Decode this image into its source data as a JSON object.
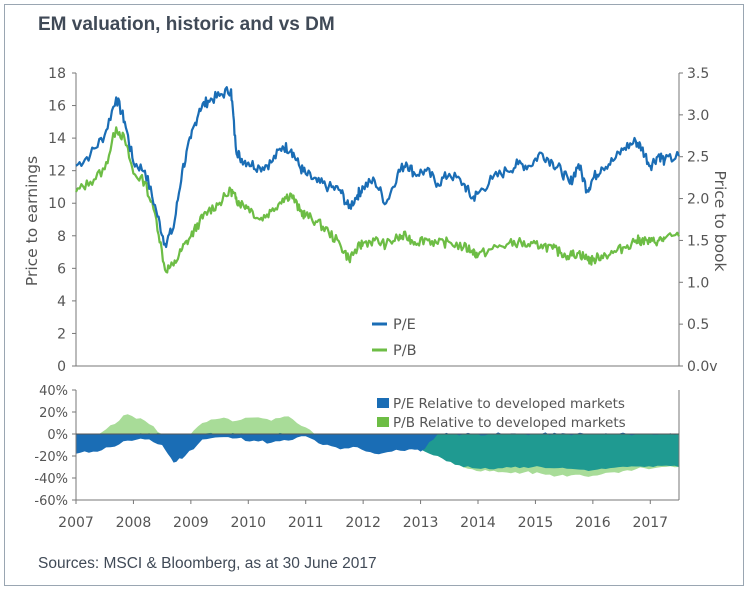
{
  "header": {
    "title": "EM valuation, historic and vs DM"
  },
  "footer": {
    "source": "Sources: MSCI & Bloomberg, as at 30 June 2017"
  },
  "colors": {
    "pe": "#1a6db5",
    "pb": "#6dbd45",
    "pe_rel_fill": "#1a6db5",
    "pb_rel_fill": "#a8dc98",
    "overlap_fill": "#1f9a91",
    "axis": "#777777"
  },
  "chart_data": [
    {
      "type": "line",
      "title": "",
      "ylabel_left": "Price to earnings",
      "ylabel_right": "Price to book",
      "ylim_left": [
        0,
        18
      ],
      "ylim_right": [
        0,
        3.5
      ],
      "yticks_left": [
        "0",
        "2",
        "4",
        "6",
        "8",
        "10",
        "12",
        "14",
        "16",
        "18"
      ],
      "yticks_right": [
        "0.0v",
        "0.5",
        "1.0",
        "1.5",
        "2.0",
        "2.5",
        "3.0",
        "3.5"
      ],
      "legend": [
        "P/E",
        "P/B"
      ],
      "legend_placement": "bottom-center",
      "series": [
        {
          "name": "P/E",
          "axis": "left",
          "x": [
            2007.0,
            2007.25,
            2007.5,
            2007.7,
            2007.85,
            2008.0,
            2008.2,
            2008.4,
            2008.55,
            2008.7,
            2008.85,
            2009.0,
            2009.15,
            2009.3,
            2009.5,
            2009.7,
            2009.78,
            2009.85,
            2010.0,
            2010.2,
            2010.4,
            2010.6,
            2010.75,
            2010.9,
            2011.0,
            2011.2,
            2011.4,
            2011.6,
            2011.75,
            2011.9,
            2012.0,
            2012.2,
            2012.4,
            2012.6,
            2012.75,
            2012.9,
            2013.1,
            2013.3,
            2013.5,
            2013.75,
            2013.9,
            2014.0,
            2014.25,
            2014.5,
            2014.7,
            2014.9,
            2015.1,
            2015.3,
            2015.45,
            2015.6,
            2015.75,
            2015.9,
            2016.0,
            2016.15,
            2016.35,
            2016.55,
            2016.75,
            2016.85,
            2017.0,
            2017.15,
            2017.25,
            2017.5
          ],
          "values": [
            12.3,
            13.0,
            14.2,
            16.5,
            15.0,
            12.5,
            12.0,
            9.5,
            7.5,
            8.5,
            12.0,
            14.0,
            15.8,
            16.3,
            16.6,
            17.0,
            13.5,
            12.8,
            12.5,
            12.2,
            12.5,
            13.5,
            13.3,
            12.2,
            11.8,
            11.3,
            11.0,
            10.8,
            9.7,
            10.5,
            11.0,
            11.4,
            10.0,
            11.8,
            12.5,
            11.8,
            12.0,
            11.2,
            11.8,
            11.2,
            10.3,
            10.6,
            11.5,
            12.0,
            12.4,
            12.3,
            13.1,
            12.5,
            12.0,
            11.2,
            12.4,
            10.8,
            11.5,
            12.2,
            12.6,
            13.4,
            13.8,
            13.4,
            12.3,
            13.0,
            12.6,
            12.9
          ]
        },
        {
          "name": "P/B",
          "axis": "right",
          "x": [
            2007.0,
            2007.25,
            2007.5,
            2007.7,
            2007.85,
            2008.0,
            2008.2,
            2008.4,
            2008.55,
            2008.7,
            2008.85,
            2009.0,
            2009.15,
            2009.3,
            2009.5,
            2009.7,
            2009.78,
            2009.85,
            2010.0,
            2010.2,
            2010.4,
            2010.6,
            2010.75,
            2010.9,
            2011.0,
            2011.2,
            2011.4,
            2011.6,
            2011.75,
            2011.9,
            2012.0,
            2012.2,
            2012.4,
            2012.6,
            2012.75,
            2012.9,
            2013.1,
            2013.3,
            2013.5,
            2013.75,
            2013.9,
            2014.0,
            2014.25,
            2014.5,
            2014.7,
            2014.9,
            2015.1,
            2015.3,
            2015.45,
            2015.6,
            2015.75,
            2015.9,
            2016.0,
            2016.15,
            2016.35,
            2016.55,
            2016.75,
            2016.85,
            2017.0,
            2017.15,
            2017.25,
            2017.5
          ],
          "values": [
            2.08,
            2.2,
            2.35,
            2.85,
            2.7,
            2.3,
            2.2,
            1.75,
            1.15,
            1.2,
            1.4,
            1.55,
            1.72,
            1.85,
            1.95,
            2.1,
            2.0,
            1.95,
            1.9,
            1.75,
            1.85,
            2.0,
            2.05,
            1.85,
            1.8,
            1.72,
            1.6,
            1.45,
            1.28,
            1.4,
            1.47,
            1.5,
            1.45,
            1.53,
            1.55,
            1.48,
            1.52,
            1.46,
            1.48,
            1.42,
            1.38,
            1.32,
            1.4,
            1.45,
            1.48,
            1.43,
            1.45,
            1.4,
            1.35,
            1.32,
            1.35,
            1.28,
            1.26,
            1.32,
            1.35,
            1.42,
            1.5,
            1.5,
            1.48,
            1.5,
            1.52,
            1.55
          ]
        }
      ]
    },
    {
      "type": "area",
      "title": "",
      "ylim": [
        -60,
        40
      ],
      "yticks": [
        "-60%",
        "-40%",
        "-20%",
        "0%",
        "20%",
        "40%"
      ],
      "legend": [
        "P/E Relative to developed markets",
        "P/B Relative to developed markets"
      ],
      "legend_placement": "top-right",
      "x_ticks": [
        "2007",
        "2008",
        "2009",
        "2010",
        "2011",
        "2012",
        "2013",
        "2014",
        "2015",
        "2016",
        "2017"
      ],
      "xlim": [
        2007,
        2017.5
      ],
      "series": [
        {
          "name": "P/E Relative to developed markets",
          "x": [
            2007.0,
            2007.3,
            2007.6,
            2007.9,
            2008.2,
            2008.5,
            2008.7,
            2008.9,
            2009.2,
            2009.5,
            2009.8,
            2010.1,
            2010.4,
            2010.7,
            2011.0,
            2011.3,
            2011.6,
            2011.9,
            2012.2,
            2012.5,
            2012.8,
            2013.0,
            2013.3,
            2013.6,
            2013.9,
            2014.2,
            2014.5,
            2014.8,
            2015.1,
            2015.4,
            2015.7,
            2016.0,
            2016.3,
            2016.6,
            2016.9,
            2017.2,
            2017.5
          ],
          "values": [
            -18,
            -16,
            -12,
            -6,
            -5,
            -10,
            -26,
            -20,
            -5,
            -3,
            -4,
            -6,
            -8,
            -6,
            -2,
            -10,
            -14,
            -12,
            -18,
            -16,
            -14,
            -16,
            -24,
            -28,
            -31,
            -32,
            -30,
            -30,
            -30,
            -31,
            -32,
            -33,
            -31,
            -30,
            -30,
            -29,
            -30
          ]
        },
        {
          "name": "P/B Relative to developed markets",
          "x": [
            2007.0,
            2007.3,
            2007.6,
            2007.9,
            2008.2,
            2008.5,
            2008.7,
            2008.9,
            2009.2,
            2009.5,
            2009.8,
            2010.1,
            2010.4,
            2010.7,
            2011.0,
            2011.3,
            2011.6,
            2011.9,
            2012.2,
            2012.5,
            2012.8,
            2013.0,
            2013.3,
            2013.6,
            2013.9,
            2014.2,
            2014.5,
            2014.8,
            2015.1,
            2015.4,
            2015.7,
            2016.0,
            2016.3,
            2016.6,
            2016.9,
            2017.2,
            2017.5
          ],
          "values": [
            -12,
            -5,
            8,
            18,
            12,
            0,
            -14,
            -6,
            10,
            14,
            12,
            15,
            12,
            16,
            6,
            -6,
            -10,
            -8,
            -12,
            -10,
            -12,
            -14,
            -20,
            -28,
            -32,
            -34,
            -35,
            -35,
            -36,
            -38,
            -37,
            -38,
            -35,
            -33,
            -31,
            -30,
            -30
          ]
        }
      ]
    }
  ]
}
